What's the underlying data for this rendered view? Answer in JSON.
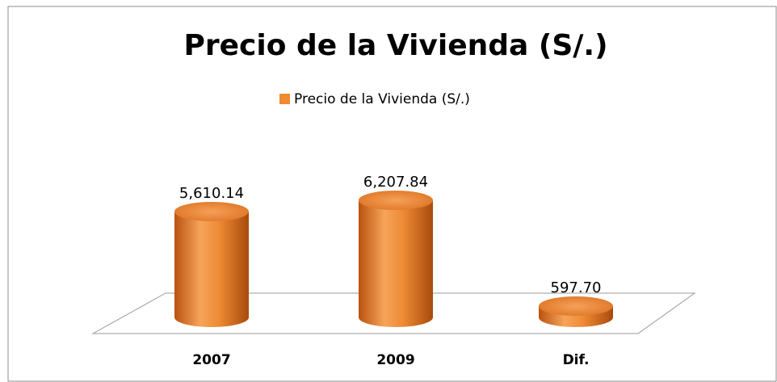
{
  "chart_data": {
    "type": "bar3d",
    "title": "Precio de la Vivienda (S/.)",
    "categories": [
      "2007",
      "2009",
      "Dif."
    ],
    "series": [
      {
        "name": "Precio de la Vivienda (S/.)",
        "color": "#f08a30",
        "values": [
          5610.14,
          6207.84,
          597.7
        ],
        "value_labels": [
          "5,610.14",
          "6,207.84",
          "597.70"
        ]
      }
    ]
  }
}
